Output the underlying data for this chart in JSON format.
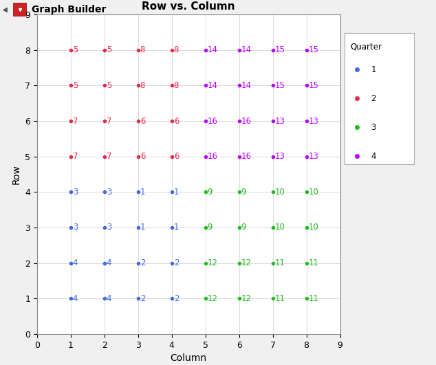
{
  "title": "Row vs. Column",
  "xlabel": "Column",
  "ylabel": "Row",
  "xlim": [
    0,
    9
  ],
  "ylim": [
    0,
    9
  ],
  "xticks": [
    0,
    1,
    2,
    3,
    4,
    5,
    6,
    7,
    8,
    9
  ],
  "yticks": [
    0,
    1,
    2,
    3,
    4,
    5,
    6,
    7,
    8,
    9
  ],
  "quarter_colors": {
    "1": "#4169E1",
    "2": "#E8294A",
    "3": "#22BB22",
    "4": "#BB00FF"
  },
  "points": [
    {
      "col": 1,
      "row": 1,
      "quarter": "1",
      "label": "4"
    },
    {
      "col": 2,
      "row": 1,
      "quarter": "1",
      "label": "4"
    },
    {
      "col": 3,
      "row": 1,
      "quarter": "1",
      "label": "2"
    },
    {
      "col": 4,
      "row": 1,
      "quarter": "1",
      "label": "2"
    },
    {
      "col": 5,
      "row": 1,
      "quarter": "3",
      "label": "12"
    },
    {
      "col": 6,
      "row": 1,
      "quarter": "3",
      "label": "12"
    },
    {
      "col": 7,
      "row": 1,
      "quarter": "3",
      "label": "11"
    },
    {
      "col": 8,
      "row": 1,
      "quarter": "3",
      "label": "11"
    },
    {
      "col": 1,
      "row": 2,
      "quarter": "1",
      "label": "4"
    },
    {
      "col": 2,
      "row": 2,
      "quarter": "1",
      "label": "4"
    },
    {
      "col": 3,
      "row": 2,
      "quarter": "1",
      "label": "2"
    },
    {
      "col": 4,
      "row": 2,
      "quarter": "1",
      "label": "2"
    },
    {
      "col": 5,
      "row": 2,
      "quarter": "3",
      "label": "12"
    },
    {
      "col": 6,
      "row": 2,
      "quarter": "3",
      "label": "12"
    },
    {
      "col": 7,
      "row": 2,
      "quarter": "3",
      "label": "11"
    },
    {
      "col": 8,
      "row": 2,
      "quarter": "3",
      "label": "11"
    },
    {
      "col": 1,
      "row": 3,
      "quarter": "1",
      "label": "3"
    },
    {
      "col": 2,
      "row": 3,
      "quarter": "1",
      "label": "3"
    },
    {
      "col": 3,
      "row": 3,
      "quarter": "1",
      "label": "1"
    },
    {
      "col": 4,
      "row": 3,
      "quarter": "1",
      "label": "1"
    },
    {
      "col": 5,
      "row": 3,
      "quarter": "3",
      "label": "9"
    },
    {
      "col": 6,
      "row": 3,
      "quarter": "3",
      "label": "9"
    },
    {
      "col": 7,
      "row": 3,
      "quarter": "3",
      "label": "10"
    },
    {
      "col": 8,
      "row": 3,
      "quarter": "3",
      "label": "10"
    },
    {
      "col": 1,
      "row": 4,
      "quarter": "1",
      "label": "3"
    },
    {
      "col": 2,
      "row": 4,
      "quarter": "1",
      "label": "3"
    },
    {
      "col": 3,
      "row": 4,
      "quarter": "1",
      "label": "1"
    },
    {
      "col": 4,
      "row": 4,
      "quarter": "1",
      "label": "1"
    },
    {
      "col": 5,
      "row": 4,
      "quarter": "3",
      "label": "9"
    },
    {
      "col": 6,
      "row": 4,
      "quarter": "3",
      "label": "9"
    },
    {
      "col": 7,
      "row": 4,
      "quarter": "3",
      "label": "10"
    },
    {
      "col": 8,
      "row": 4,
      "quarter": "3",
      "label": "10"
    },
    {
      "col": 1,
      "row": 5,
      "quarter": "2",
      "label": "7"
    },
    {
      "col": 2,
      "row": 5,
      "quarter": "2",
      "label": "7"
    },
    {
      "col": 3,
      "row": 5,
      "quarter": "2",
      "label": "6"
    },
    {
      "col": 4,
      "row": 5,
      "quarter": "2",
      "label": "6"
    },
    {
      "col": 5,
      "row": 5,
      "quarter": "4",
      "label": "16"
    },
    {
      "col": 6,
      "row": 5,
      "quarter": "4",
      "label": "16"
    },
    {
      "col": 7,
      "row": 5,
      "quarter": "4",
      "label": "13"
    },
    {
      "col": 8,
      "row": 5,
      "quarter": "4",
      "label": "13"
    },
    {
      "col": 1,
      "row": 6,
      "quarter": "2",
      "label": "7"
    },
    {
      "col": 2,
      "row": 6,
      "quarter": "2",
      "label": "7"
    },
    {
      "col": 3,
      "row": 6,
      "quarter": "2",
      "label": "6"
    },
    {
      "col": 4,
      "row": 6,
      "quarter": "2",
      "label": "6"
    },
    {
      "col": 5,
      "row": 6,
      "quarter": "4",
      "label": "16"
    },
    {
      "col": 6,
      "row": 6,
      "quarter": "4",
      "label": "16"
    },
    {
      "col": 7,
      "row": 6,
      "quarter": "4",
      "label": "13"
    },
    {
      "col": 8,
      "row": 6,
      "quarter": "4",
      "label": "13"
    },
    {
      "col": 1,
      "row": 7,
      "quarter": "2",
      "label": "5"
    },
    {
      "col": 2,
      "row": 7,
      "quarter": "2",
      "label": "5"
    },
    {
      "col": 3,
      "row": 7,
      "quarter": "2",
      "label": "8"
    },
    {
      "col": 4,
      "row": 7,
      "quarter": "2",
      "label": "8"
    },
    {
      "col": 5,
      "row": 7,
      "quarter": "4",
      "label": "14"
    },
    {
      "col": 6,
      "row": 7,
      "quarter": "4",
      "label": "14"
    },
    {
      "col": 7,
      "row": 7,
      "quarter": "4",
      "label": "15"
    },
    {
      "col": 8,
      "row": 7,
      "quarter": "4",
      "label": "15"
    },
    {
      "col": 1,
      "row": 8,
      "quarter": "2",
      "label": "5"
    },
    {
      "col": 2,
      "row": 8,
      "quarter": "2",
      "label": "5"
    },
    {
      "col": 3,
      "row": 8,
      "quarter": "2",
      "label": "8"
    },
    {
      "col": 4,
      "row": 8,
      "quarter": "2",
      "label": "8"
    },
    {
      "col": 5,
      "row": 8,
      "quarter": "4",
      "label": "14"
    },
    {
      "col": 6,
      "row": 8,
      "quarter": "4",
      "label": "14"
    },
    {
      "col": 7,
      "row": 8,
      "quarter": "4",
      "label": "15"
    },
    {
      "col": 8,
      "row": 8,
      "quarter": "4",
      "label": "15"
    }
  ],
  "legend_title": "Quarter",
  "legend_labels": [
    "1",
    "2",
    "3",
    "4"
  ],
  "header_title": "Graph Builder",
  "background_color": "#f0f0f0",
  "plot_bg_color": "#ffffff",
  "header_bg": "#e8e8e8",
  "dot_size": 4,
  "text_fontsize": 8.5
}
